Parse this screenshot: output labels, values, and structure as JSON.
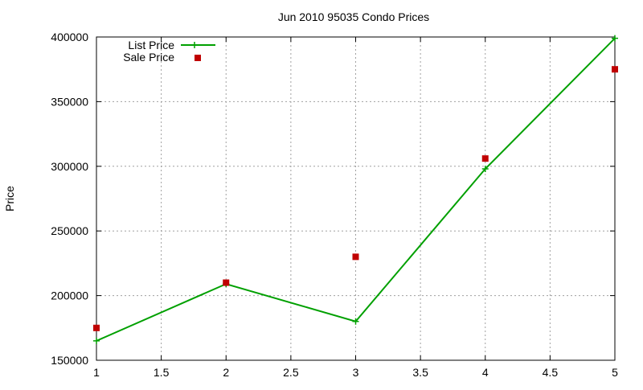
{
  "chart_data": {
    "type": "line",
    "title": "Jun 2010 95035 Condo Prices",
    "xlabel": "",
    "ylabel": "Price",
    "xlim": [
      1,
      5
    ],
    "ylim": [
      150000,
      400000
    ],
    "x_ticks": [
      1,
      1.5,
      2,
      2.5,
      3,
      3.5,
      4,
      4.5,
      5
    ],
    "x_tick_labels": [
      "1",
      "1.5",
      "2",
      "2.5",
      "3",
      "3.5",
      "4",
      "4.5",
      "5"
    ],
    "y_ticks": [
      150000,
      200000,
      250000,
      300000,
      350000,
      400000
    ],
    "y_tick_labels": [
      "150000",
      "200000",
      "250000",
      "300000",
      "350000",
      "400000"
    ],
    "grid": true,
    "legend_position": "top-left",
    "series": [
      {
        "name": "List Price",
        "style": "line-with-plus-markers",
        "color": "#00a000",
        "x": [
          1,
          2,
          3,
          4,
          5
        ],
        "y": [
          165000,
          209000,
          180000,
          298000,
          399000
        ]
      },
      {
        "name": "Sale Price",
        "style": "square-markers",
        "color": "#c00000",
        "x": [
          1,
          2,
          3,
          4,
          5
        ],
        "y": [
          175000,
          210000,
          230000,
          306000,
          375000
        ]
      }
    ]
  }
}
